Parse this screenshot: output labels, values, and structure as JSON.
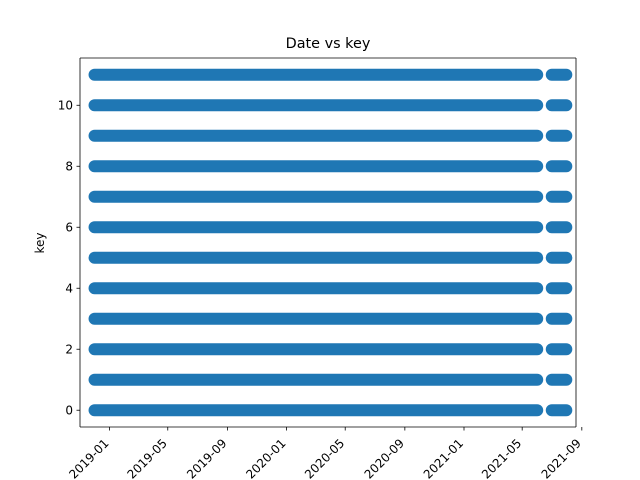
{
  "chart_data": {
    "type": "scatter",
    "title": "Date vs key",
    "xlabel": "",
    "ylabel": "key",
    "grid": false,
    "color": "#1f77b4",
    "x_axis": {
      "kind": "date",
      "range": [
        "2018-11-01",
        "2021-08-20"
      ],
      "ticks": [
        "2019-01",
        "2019-05",
        "2019-09",
        "2020-01",
        "2020-05",
        "2020-09",
        "2021-01",
        "2021-05",
        "2021-09"
      ]
    },
    "y_axis": {
      "range": [
        -0.55,
        11.55
      ],
      "ticks": [
        "0",
        "2",
        "4",
        "6",
        "8",
        "10"
      ]
    },
    "series": [
      {
        "name": "key",
        "y_values": [
          0,
          1,
          2,
          3,
          4,
          5,
          6,
          7,
          8,
          9,
          10,
          11
        ],
        "date_segments": [
          {
            "start": "2018-12-01",
            "end": "2021-06-01"
          },
          {
            "start": "2021-07-01",
            "end": "2021-07-31"
          }
        ]
      }
    ]
  }
}
